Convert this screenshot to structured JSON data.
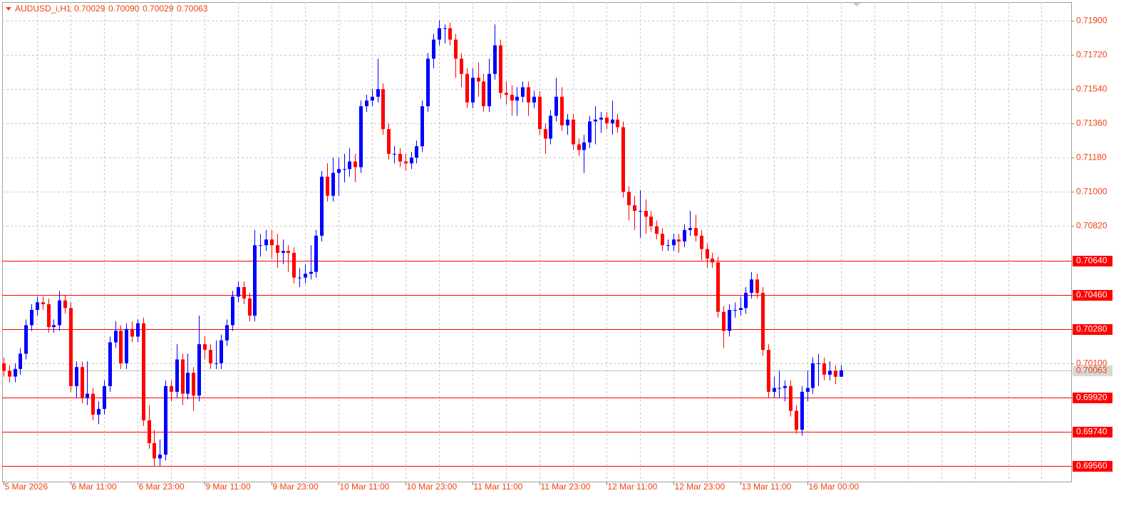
{
  "chart_data": {
    "type": "candlestick",
    "symbol": "AUDUSD_i,H1",
    "ohlc_labels": [
      "0.70029",
      "0.70090",
      "0.70029",
      "0.70063"
    ],
    "open": [
      0.701,
      0.7006,
      0.7003,
      0.7007,
      0.7015,
      0.703,
      0.7038,
      0.7042,
      0.7041,
      0.7029,
      0.703,
      0.7043,
      0.7039,
      0.6998,
      0.7008,
      0.6992,
      0.6994,
      0.6983,
      0.6986,
      0.6998,
      0.7021,
      0.7027,
      0.701,
      0.7028,
      0.7024,
      0.7031,
      0.698,
      0.6968,
      0.696,
      0.6962,
      0.6998,
      0.6995,
      0.7012,
      0.6994,
      0.7005,
      0.6993,
      0.702,
      0.7017,
      0.701,
      0.701,
      0.7022,
      0.703,
      0.7045,
      0.705,
      0.7044,
      0.7035,
      0.7072,
      0.7072,
      0.7075,
      0.7072,
      0.7068,
      0.7069,
      0.7068,
      0.7055,
      0.7055,
      0.7057,
      0.7058,
      0.7077,
      0.7108,
      0.7098,
      0.711,
      0.7112,
      0.7112,
      0.7116,
      0.7113,
      0.7145,
      0.7148,
      0.715,
      0.7154,
      0.7133,
      0.712,
      0.712,
      0.7116,
      0.7115,
      0.7118,
      0.7124,
      0.7145,
      0.717,
      0.718,
      0.7186,
      0.7186,
      0.718,
      0.717,
      0.7162,
      0.7147,
      0.716,
      0.7158,
      0.7145,
      0.7162,
      0.7177,
      0.7152,
      0.7151,
      0.7148,
      0.715,
      0.7155,
      0.7147,
      0.715,
      0.7133,
      0.7128,
      0.714,
      0.715,
      0.7135,
      0.7138,
      0.7125,
      0.7122,
      0.7126,
      0.7137,
      0.7138,
      0.7139,
      0.7136,
      0.7138,
      0.7134,
      0.71,
      0.7093,
      0.709,
      0.709,
      0.7087,
      0.7082,
      0.7078,
      0.7072,
      0.7072,
      0.7075,
      0.7074,
      0.708,
      0.7081,
      0.7077,
      0.707,
      0.7065,
      0.7063,
      0.7037,
      0.7027,
      0.7038,
      0.7038,
      0.7039,
      0.7047,
      0.7054,
      0.7047,
      0.7017,
      0.6995,
      0.6997,
      0.6997,
      0.6998,
      0.6985,
      0.6975,
      0.6995,
      0.6997,
      0.701,
      0.701,
      0.7004,
      0.7006,
      0.70029
    ],
    "high": [
      0.7013,
      0.7009,
      0.701,
      0.7018,
      0.7033,
      0.7041,
      0.7045,
      0.7045,
      0.7044,
      0.7033,
      0.7048,
      0.7046,
      0.7042,
      0.7011,
      0.7011,
      0.7011,
      0.6997,
      0.699,
      0.7001,
      0.7024,
      0.7032,
      0.703,
      0.7031,
      0.7032,
      0.7033,
      0.7034,
      0.6988,
      0.6975,
      0.697,
      0.7001,
      0.7001,
      0.702,
      0.7015,
      0.7015,
      0.7008,
      0.7035,
      0.7024,
      0.702,
      0.7022,
      0.7025,
      0.7033,
      0.7048,
      0.7053,
      0.7053,
      0.7047,
      0.708,
      0.7078,
      0.708,
      0.708,
      0.7078,
      0.7075,
      0.7072,
      0.7071,
      0.706,
      0.7062,
      0.7072,
      0.708,
      0.7111,
      0.7115,
      0.7118,
      0.7118,
      0.712,
      0.7123,
      0.712,
      0.7148,
      0.7151,
      0.7154,
      0.717,
      0.7157,
      0.7136,
      0.7124,
      0.7123,
      0.712,
      0.7121,
      0.7127,
      0.7148,
      0.7173,
      0.7183,
      0.719,
      0.7188,
      0.7189,
      0.7183,
      0.7173,
      0.7165,
      0.7165,
      0.7168,
      0.7162,
      0.717,
      0.7188,
      0.718,
      0.7158,
      0.7156,
      0.7155,
      0.7158,
      0.7158,
      0.7153,
      0.7153,
      0.7136,
      0.7143,
      0.716,
      0.7155,
      0.7141,
      0.7141,
      0.7128,
      0.713,
      0.714,
      0.7145,
      0.7142,
      0.7142,
      0.7148,
      0.7141,
      0.7137,
      0.7103,
      0.7098,
      0.7101,
      0.7096,
      0.709,
      0.7085,
      0.7081,
      0.7075,
      0.7078,
      0.7078,
      0.7083,
      0.709,
      0.7088,
      0.708,
      0.7073,
      0.7068,
      0.7066,
      0.704,
      0.7041,
      0.7042,
      0.7045,
      0.705,
      0.7058,
      0.7057,
      0.705,
      0.702,
      0.7003,
      0.7006,
      0.7001,
      0.7001,
      0.6988,
      0.6998,
      0.7006,
      0.7013,
      0.7015,
      0.7013,
      0.7011,
      0.7009,
      0.7009
    ],
    "low": [
      0.7003,
      0.7,
      0.7,
      0.7004,
      0.7012,
      0.7027,
      0.7035,
      0.7038,
      0.7026,
      0.7026,
      0.7027,
      0.7036,
      0.6995,
      0.6992,
      0.6989,
      0.6988,
      0.698,
      0.6978,
      0.6983,
      0.6995,
      0.7018,
      0.7007,
      0.7007,
      0.7021,
      0.7021,
      0.6977,
      0.6965,
      0.6956,
      0.6956,
      0.6959,
      0.699,
      0.6992,
      0.6988,
      0.6991,
      0.6985,
      0.699,
      0.7012,
      0.7007,
      0.7007,
      0.7007,
      0.7019,
      0.7027,
      0.7042,
      0.7041,
      0.7032,
      0.7032,
      0.7066,
      0.7069,
      0.7065,
      0.706,
      0.7062,
      0.7058,
      0.7052,
      0.705,
      0.7052,
      0.7054,
      0.7055,
      0.7074,
      0.7095,
      0.7095,
      0.7098,
      0.7105,
      0.7108,
      0.7105,
      0.711,
      0.7142,
      0.7145,
      0.7147,
      0.713,
      0.7117,
      0.7115,
      0.7113,
      0.7111,
      0.7112,
      0.7115,
      0.7121,
      0.7142,
      0.7165,
      0.7177,
      0.7178,
      0.7177,
      0.716,
      0.7155,
      0.7144,
      0.7144,
      0.715,
      0.7142,
      0.7142,
      0.7159,
      0.7149,
      0.7146,
      0.714,
      0.714,
      0.7147,
      0.714,
      0.7144,
      0.713,
      0.712,
      0.7125,
      0.7137,
      0.7132,
      0.713,
      0.7122,
      0.7119,
      0.711,
      0.7123,
      0.7125,
      0.7131,
      0.7133,
      0.713,
      0.7131,
      0.7097,
      0.7085,
      0.708,
      0.7076,
      0.7078,
      0.7079,
      0.7075,
      0.7069,
      0.7069,
      0.7069,
      0.7068,
      0.7071,
      0.7077,
      0.7074,
      0.7064,
      0.706,
      0.706,
      0.7034,
      0.7018,
      0.7024,
      0.7034,
      0.7035,
      0.7036,
      0.7044,
      0.7044,
      0.7014,
      0.6992,
      0.6992,
      0.6992,
      0.699,
      0.6982,
      0.6973,
      0.6972,
      0.699,
      0.6994,
      0.6998,
      0.7001,
      0.7001,
      0.6999,
      0.70029
    ],
    "close": [
      0.7006,
      0.7003,
      0.7007,
      0.7015,
      0.703,
      0.7038,
      0.7042,
      0.7041,
      0.7029,
      0.703,
      0.7043,
      0.7039,
      0.6998,
      0.7008,
      0.6992,
      0.6994,
      0.6983,
      0.6986,
      0.6998,
      0.7021,
      0.7027,
      0.701,
      0.7028,
      0.7024,
      0.7031,
      0.698,
      0.6968,
      0.696,
      0.6962,
      0.6998,
      0.6995,
      0.7012,
      0.6994,
      0.7005,
      0.6993,
      0.702,
      0.7017,
      0.701,
      0.701,
      0.7022,
      0.703,
      0.7045,
      0.705,
      0.7044,
      0.7035,
      0.7072,
      0.7072,
      0.7075,
      0.7072,
      0.7068,
      0.7069,
      0.7068,
      0.7055,
      0.7055,
      0.7057,
      0.7058,
      0.7077,
      0.7108,
      0.7098,
      0.711,
      0.7112,
      0.7112,
      0.7116,
      0.7113,
      0.7145,
      0.7148,
      0.715,
      0.7154,
      0.7133,
      0.712,
      0.712,
      0.7116,
      0.7115,
      0.7118,
      0.7124,
      0.7145,
      0.717,
      0.718,
      0.7186,
      0.7186,
      0.718,
      0.717,
      0.7162,
      0.7147,
      0.716,
      0.7158,
      0.7145,
      0.7162,
      0.7177,
      0.7152,
      0.7151,
      0.7148,
      0.715,
      0.7155,
      0.7147,
      0.715,
      0.7133,
      0.7128,
      0.714,
      0.715,
      0.7135,
      0.7138,
      0.7125,
      0.7122,
      0.7126,
      0.7137,
      0.7138,
      0.7139,
      0.7136,
      0.7138,
      0.7134,
      0.71,
      0.7093,
      0.709,
      0.709,
      0.7087,
      0.7082,
      0.7078,
      0.7072,
      0.7072,
      0.7075,
      0.7074,
      0.708,
      0.7081,
      0.7077,
      0.707,
      0.7065,
      0.7063,
      0.7037,
      0.7027,
      0.7038,
      0.7038,
      0.7039,
      0.7047,
      0.7054,
      0.7047,
      0.7017,
      0.6995,
      0.6997,
      0.6997,
      0.6998,
      0.6985,
      0.6975,
      0.6995,
      0.6997,
      0.701,
      0.701,
      0.7004,
      0.7006,
      0.70029,
      0.70063
    ],
    "up_color": "#0000ff",
    "down_color": "#ff0000",
    "xlim": [
      -0.25,
      191.3
    ],
    "ylim": [
      0.69478,
      0.71997
    ],
    "xticks": [
      {
        "value": 0,
        "label": "5 Mar 2026"
      },
      {
        "value": 12,
        "label": "6 Mar 11:00"
      },
      {
        "value": 24,
        "label": "6 Mar 23:00"
      },
      {
        "value": 36,
        "label": "9 Mar 11:00"
      },
      {
        "value": 48,
        "label": "9 Mar 23:00"
      },
      {
        "value": 60,
        "label": "10 Mar 11:00"
      },
      {
        "value": 72,
        "label": "10 Mar 23:00"
      },
      {
        "value": 84,
        "label": "11 Mar 11:00"
      },
      {
        "value": 96,
        "label": "11 Mar 23:00"
      },
      {
        "value": 108,
        "label": "12 Mar 11:00"
      },
      {
        "value": 120,
        "label": "12 Mar 23:00"
      },
      {
        "value": 132,
        "label": "13 Mar 11:00"
      },
      {
        "value": 144,
        "label": "16 Mar 00:00"
      }
    ],
    "xgrid": [
      6,
      12,
      18,
      24,
      30,
      36,
      42,
      48,
      54,
      60,
      66,
      72,
      78,
      84,
      90,
      96,
      102,
      108,
      114,
      120,
      126,
      132,
      138,
      144,
      150,
      156,
      162,
      168,
      174,
      180,
      186
    ],
    "yticks": [
      {
        "value": 0.719,
        "label": "0.71900"
      },
      {
        "value": 0.7172,
        "label": "0.71720"
      },
      {
        "value": 0.7154,
        "label": "0.71540"
      },
      {
        "value": 0.7136,
        "label": "0.71360"
      },
      {
        "value": 0.7118,
        "label": "0.71180"
      },
      {
        "value": 0.71,
        "label": "0.71000"
      },
      {
        "value": 0.7082,
        "label": "0.70820"
      },
      {
        "value": 0.7064,
        "label": "0.70640"
      },
      {
        "value": 0.7046,
        "label": "0.70460"
      },
      {
        "value": 0.7028,
        "label": "0.70280"
      },
      {
        "value": 0.701,
        "label": "0.70100"
      },
      {
        "value": 0.6992,
        "label": "0.69920"
      },
      {
        "value": 0.6974,
        "label": "0.69740"
      },
      {
        "value": 0.6956,
        "label": "0.69560"
      }
    ],
    "levels": [
      0.7064,
      0.7046,
      0.7028,
      0.6992,
      0.6974,
      0.6956
    ],
    "level_color": "#ff0000",
    "bid": {
      "value": 0.70063,
      "label": "0.70063"
    },
    "grid": true
  }
}
